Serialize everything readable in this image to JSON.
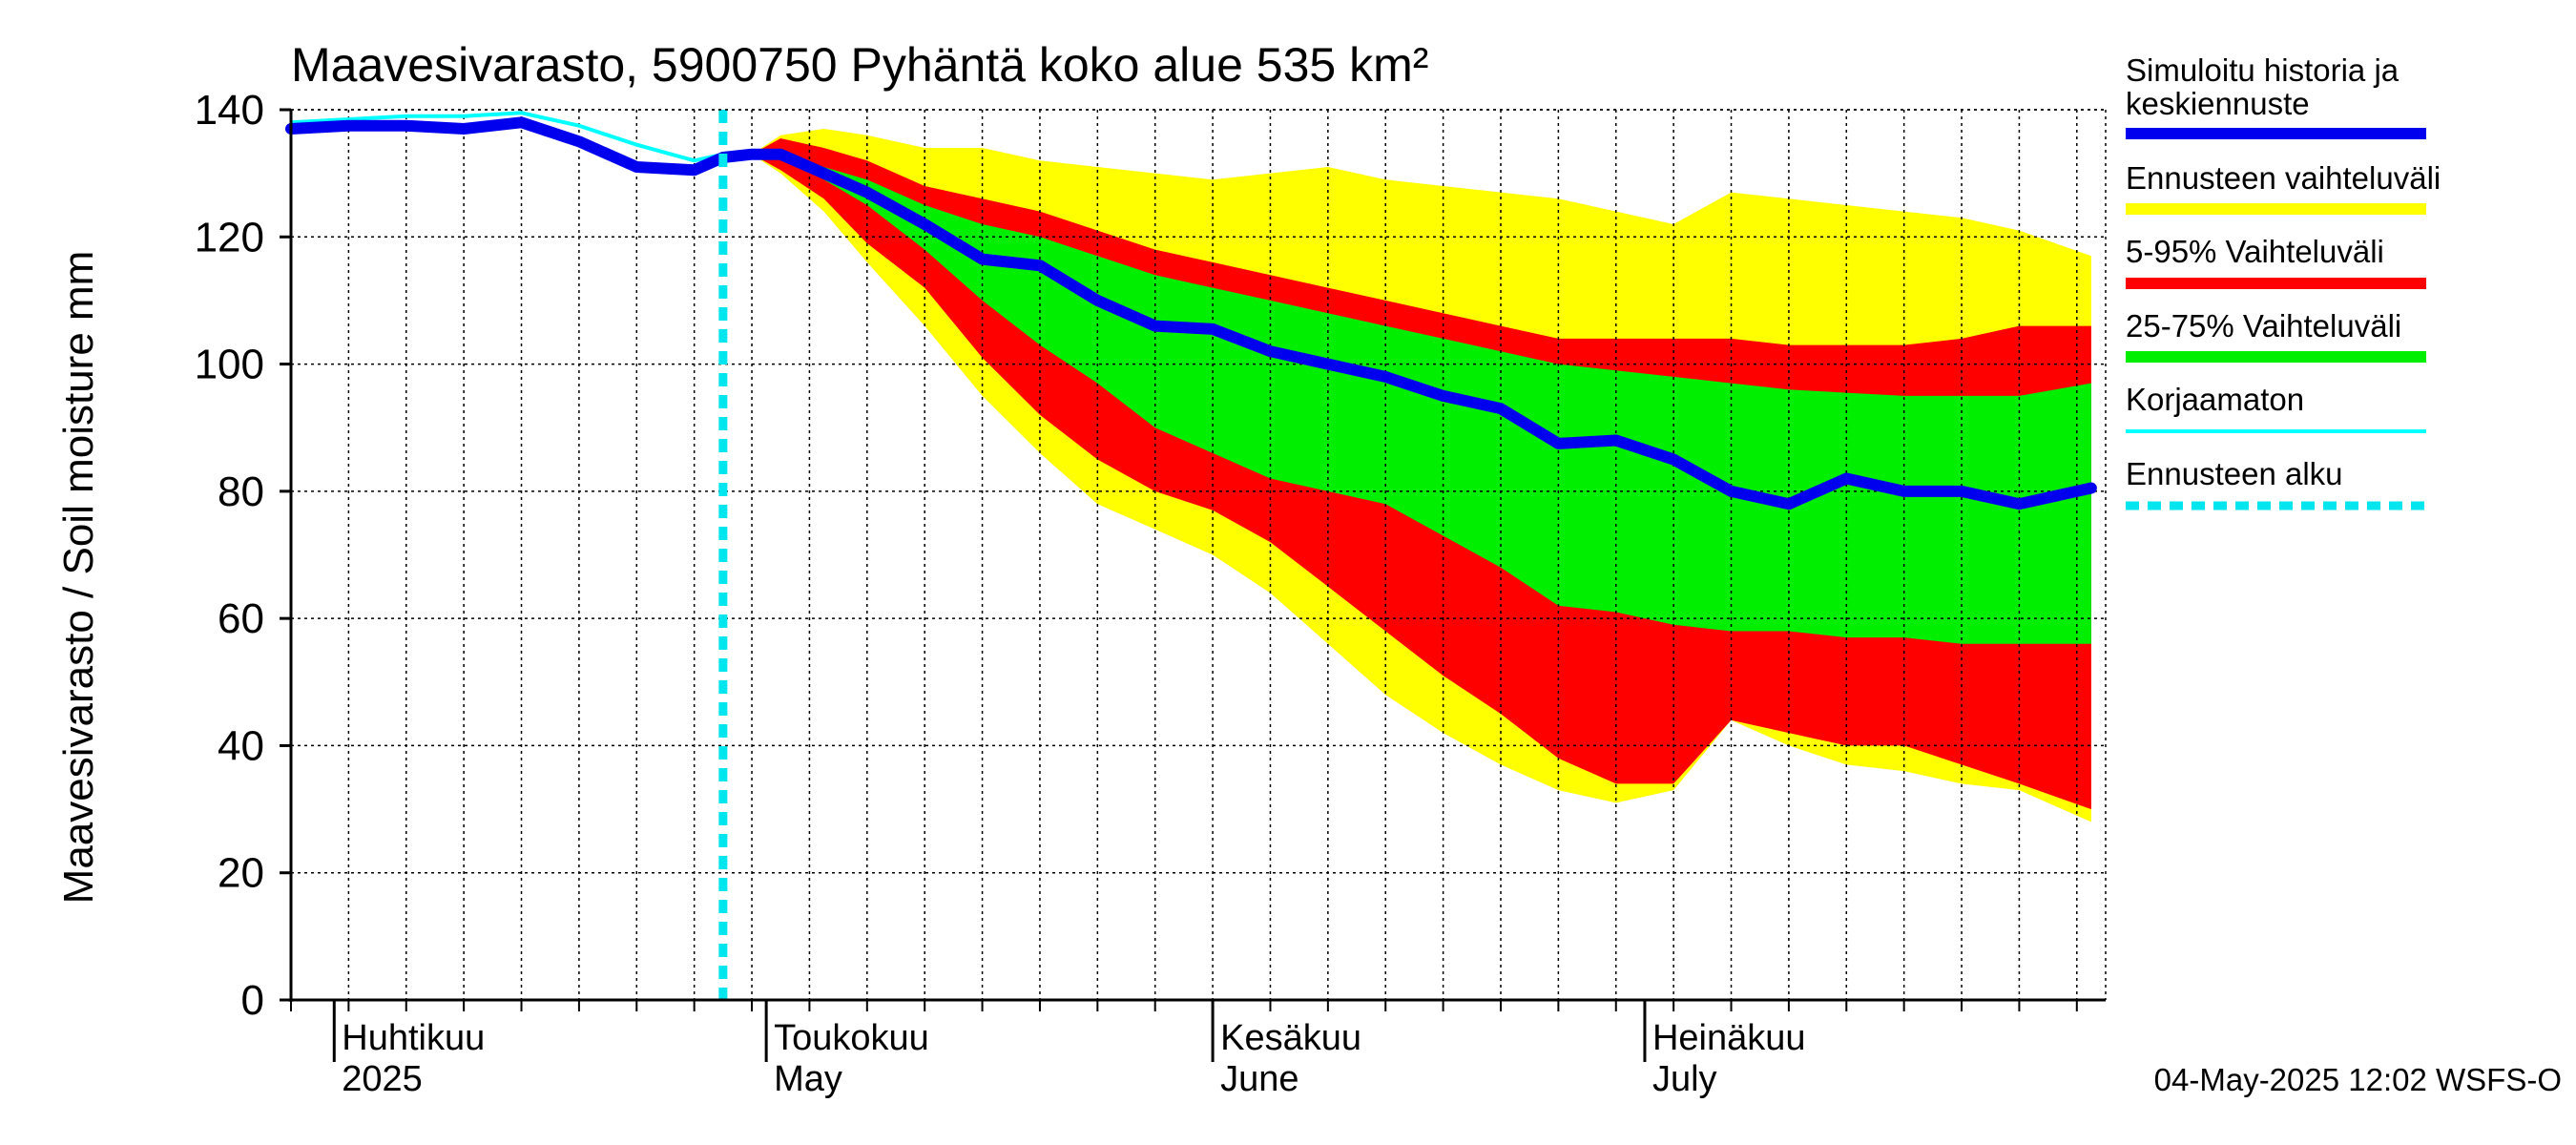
{
  "chart_data": {
    "type": "area",
    "title": "Maavesivarasto, 5900750 Pyhäntä koko alue 535 km²",
    "ylabel": "Maavesivarasto / Soil moisture   mm",
    "ylim": [
      0,
      140
    ],
    "yticks": [
      0,
      20,
      40,
      60,
      80,
      100,
      120,
      140
    ],
    "xlim": [
      "2025-03-29",
      "2025-08-02"
    ],
    "grid": true,
    "legend_position": "right",
    "month_labels": [
      {
        "date": "2025-04-01",
        "line1": "Huhtikuu",
        "line2": "2025"
      },
      {
        "date": "2025-05-01",
        "line1": "Toukokuu",
        "line2": "May"
      },
      {
        "date": "2025-06-01",
        "line1": "Kesäkuu",
        "line2": "June"
      },
      {
        "date": "2025-07-01",
        "line1": "Heinäkuu",
        "line2": "July"
      }
    ],
    "forecast_start": "2025-04-28",
    "timestamp": "04-May-2025 12:02 WSFS-O",
    "colors": {
      "median": "#0000ee",
      "range_full": "#ffff00",
      "range_5_95": "#ff0000",
      "range_25_75": "#00ee00",
      "uncorrected": "#00ffff",
      "forecast_start": "#00e5ee"
    },
    "legend": [
      {
        "label": "Simuloitu historia ja keskiennuste",
        "key": "median"
      },
      {
        "label": "Ennusteen vaihteluväli",
        "key": "range_full"
      },
      {
        "label": "5-95% Vaihteluväli",
        "key": "range_5_95"
      },
      {
        "label": "25-75% Vaihteluväli",
        "key": "range_25_75"
      },
      {
        "label": "Korjaamaton",
        "key": "uncorrected"
      },
      {
        "label": "Ennusteen alku",
        "key": "forecast_start"
      }
    ],
    "x": [
      "2025-03-29",
      "2025-04-02",
      "2025-04-06",
      "2025-04-10",
      "2025-04-14",
      "2025-04-18",
      "2025-04-22",
      "2025-04-26",
      "2025-04-28",
      "2025-04-30",
      "2025-05-02",
      "2025-05-05",
      "2025-05-08",
      "2025-05-12",
      "2025-05-16",
      "2025-05-20",
      "2025-05-24",
      "2025-05-28",
      "2025-06-01",
      "2025-06-05",
      "2025-06-09",
      "2025-06-13",
      "2025-06-17",
      "2025-06-21",
      "2025-06-25",
      "2025-06-29",
      "2025-07-03",
      "2025-07-07",
      "2025-07-11",
      "2025-07-15",
      "2025-07-19",
      "2025-07-23",
      "2025-07-27",
      "2025-08-01"
    ],
    "history": [
      137,
      137.5,
      137.5,
      137,
      138,
      135,
      131,
      130.5,
      132.5,
      133,
      133,
      130,
      127,
      122,
      116.5,
      115.5,
      110,
      106,
      105.5,
      102,
      100,
      98,
      95,
      93,
      87.5,
      88,
      85,
      80,
      78,
      82,
      80,
      80,
      78,
      80.5
    ],
    "uncorrected": [
      138,
      138.5,
      139,
      139,
      139.5,
      137.5,
      134.5,
      132,
      133
    ],
    "band_25_75_upper": [
      null,
      null,
      null,
      null,
      null,
      null,
      null,
      null,
      null,
      133,
      133.5,
      131,
      129,
      125,
      122,
      120,
      117,
      114,
      112,
      110,
      108,
      106,
      104,
      102,
      100,
      99,
      98,
      97,
      96,
      95.5,
      95,
      95,
      95,
      97
    ],
    "band_25_75_lower": [
      null,
      null,
      null,
      null,
      null,
      null,
      null,
      null,
      null,
      133,
      132.5,
      129,
      125,
      118,
      110,
      103,
      97,
      90,
      86,
      82,
      80,
      78,
      73,
      68,
      62,
      61,
      59,
      58,
      58,
      57,
      57,
      56,
      56,
      56
    ],
    "band_5_95_upper": [
      null,
      null,
      null,
      null,
      null,
      null,
      null,
      null,
      null,
      133,
      135.5,
      134,
      132,
      128,
      126,
      124,
      121,
      118,
      116,
      114,
      112,
      110,
      108,
      106,
      104,
      104,
      104,
      104,
      103,
      103,
      103,
      104,
      106,
      106
    ],
    "band_5_95_lower": [
      null,
      null,
      null,
      null,
      null,
      null,
      null,
      null,
      null,
      133,
      130.5,
      126,
      119,
      112,
      101,
      92,
      85,
      80,
      77,
      72,
      65,
      58,
      51,
      45,
      38,
      34,
      34,
      44,
      42,
      40,
      40,
      37,
      34,
      30
    ],
    "band_full_upper": [
      null,
      null,
      null,
      null,
      null,
      null,
      null,
      null,
      null,
      133,
      136,
      137,
      136,
      134,
      134,
      132,
      131,
      130,
      129,
      130,
      131,
      129,
      128,
      127,
      126,
      124,
      122,
      127,
      126,
      125,
      124,
      123,
      121,
      117
    ],
    "band_full_lower": [
      null,
      null,
      null,
      null,
      null,
      null,
      null,
      null,
      null,
      133,
      130,
      124,
      116,
      106,
      95,
      86,
      78,
      74,
      70,
      64,
      56,
      48,
      42,
      37,
      33,
      31,
      33,
      44,
      40,
      37,
      36,
      34,
      33,
      28
    ]
  }
}
